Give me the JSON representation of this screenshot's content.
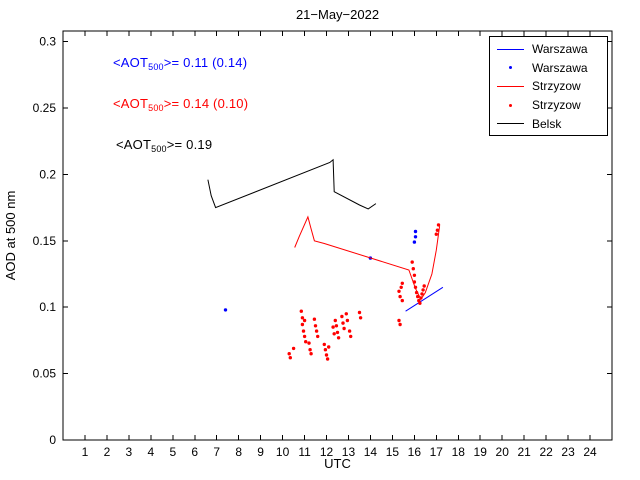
{
  "annotations": [
    {
      "prefix": "<AOT",
      "sub": "500",
      "suffix": ">= 0.11 (0.14)",
      "color": "#0000ff"
    },
    {
      "prefix": "<AOT",
      "sub": "500",
      "suffix": ">= 0.14 (0.10)",
      "color": "#ff0000"
    },
    {
      "prefix": "<AOT",
      "sub": "500",
      "suffix": ">= 0.19",
      "color": "#000000"
    }
  ],
  "chart_data": {
    "type": "line",
    "title": "21−May−2022",
    "xlabel": "UTC",
    "ylabel": "AOD at 500 nm",
    "xlim": [
      0,
      25
    ],
    "ylim": [
      0,
      0.308
    ],
    "xticks": [
      1,
      2,
      3,
      4,
      5,
      6,
      7,
      8,
      9,
      10,
      11,
      12,
      13,
      14,
      15,
      16,
      17,
      18,
      19,
      20,
      21,
      22,
      23,
      24
    ],
    "yticks": [
      0,
      0.05,
      0.1,
      0.15,
      0.2,
      0.25,
      0.3
    ],
    "ytick_labels": [
      "0",
      "0.05",
      "0.1",
      "0.15",
      "0.2",
      "0.25",
      "0.3"
    ],
    "grid": false,
    "legend_position": "top-right",
    "series": [
      {
        "name": "Warszawa",
        "style": "line",
        "color": "#0000ff",
        "points": [
          [
            15.6,
            0.097
          ],
          [
            17.3,
            0.115
          ]
        ]
      },
      {
        "name": "Warszawa",
        "style": "scatter",
        "color": "#0000ff",
        "points": [
          [
            7.4,
            0.098
          ],
          [
            14.0,
            0.137
          ],
          [
            16.0,
            0.149
          ],
          [
            16.05,
            0.153
          ],
          [
            16.05,
            0.157
          ]
        ]
      },
      {
        "name": "Strzyzow",
        "style": "line",
        "color": "#ff0000",
        "points": [
          [
            10.55,
            0.145
          ],
          [
            10.75,
            0.153
          ],
          [
            11.15,
            0.168
          ],
          [
            11.3,
            0.159
          ],
          [
            11.45,
            0.15
          ],
          [
            11.9,
            0.148
          ],
          [
            15.75,
            0.128
          ],
          [
            16.05,
            0.114
          ],
          [
            16.3,
            0.106
          ],
          [
            16.5,
            0.111
          ],
          [
            16.8,
            0.125
          ],
          [
            17.0,
            0.143
          ],
          [
            17.15,
            0.161
          ]
        ]
      },
      {
        "name": "Strzyzow",
        "style": "scatter",
        "color": "#ff0000",
        "points": [
          [
            10.3,
            0.065
          ],
          [
            10.35,
            0.062
          ],
          [
            10.5,
            0.069
          ],
          [
            10.85,
            0.097
          ],
          [
            10.9,
            0.092
          ],
          [
            10.9,
            0.087
          ],
          [
            10.95,
            0.082
          ],
          [
            11.0,
            0.078
          ],
          [
            11.0,
            0.09
          ],
          [
            11.05,
            0.074
          ],
          [
            11.2,
            0.073
          ],
          [
            11.25,
            0.068
          ],
          [
            11.3,
            0.065
          ],
          [
            11.45,
            0.091
          ],
          [
            11.5,
            0.086
          ],
          [
            11.55,
            0.082
          ],
          [
            11.6,
            0.078
          ],
          [
            11.9,
            0.072
          ],
          [
            11.95,
            0.068
          ],
          [
            12.0,
            0.064
          ],
          [
            12.05,
            0.061
          ],
          [
            12.1,
            0.07
          ],
          [
            12.3,
            0.085
          ],
          [
            12.35,
            0.08
          ],
          [
            12.4,
            0.09
          ],
          [
            12.45,
            0.086
          ],
          [
            12.5,
            0.081
          ],
          [
            12.55,
            0.077
          ],
          [
            12.7,
            0.093
          ],
          [
            12.75,
            0.088
          ],
          [
            12.8,
            0.084
          ],
          [
            12.9,
            0.095
          ],
          [
            12.95,
            0.09
          ],
          [
            13.05,
            0.082
          ],
          [
            13.1,
            0.078
          ],
          [
            13.5,
            0.096
          ],
          [
            13.55,
            0.092
          ],
          [
            15.3,
            0.09
          ],
          [
            15.35,
            0.087
          ],
          [
            15.3,
            0.112
          ],
          [
            15.35,
            0.108
          ],
          [
            15.4,
            0.115
          ],
          [
            15.45,
            0.118
          ],
          [
            15.45,
            0.105
          ],
          [
            15.9,
            0.134
          ],
          [
            15.95,
            0.129
          ],
          [
            16.0,
            0.124
          ],
          [
            16.0,
            0.119
          ],
          [
            16.05,
            0.115
          ],
          [
            16.1,
            0.111
          ],
          [
            16.15,
            0.108
          ],
          [
            16.2,
            0.105
          ],
          [
            16.25,
            0.103
          ],
          [
            16.3,
            0.107
          ],
          [
            16.35,
            0.11
          ],
          [
            16.4,
            0.113
          ],
          [
            16.45,
            0.116
          ],
          [
            17.0,
            0.155
          ],
          [
            17.05,
            0.158
          ],
          [
            17.1,
            0.162
          ]
        ]
      },
      {
        "name": "Belsk",
        "style": "line",
        "color": "#000000",
        "points": [
          [
            6.6,
            0.196
          ],
          [
            6.75,
            0.184
          ],
          [
            6.95,
            0.175
          ],
          [
            12.15,
            0.209
          ],
          [
            12.3,
            0.211
          ],
          [
            12.35,
            0.187
          ],
          [
            13.5,
            0.177
          ],
          [
            13.9,
            0.174
          ],
          [
            14.25,
            0.178
          ]
        ]
      }
    ]
  }
}
